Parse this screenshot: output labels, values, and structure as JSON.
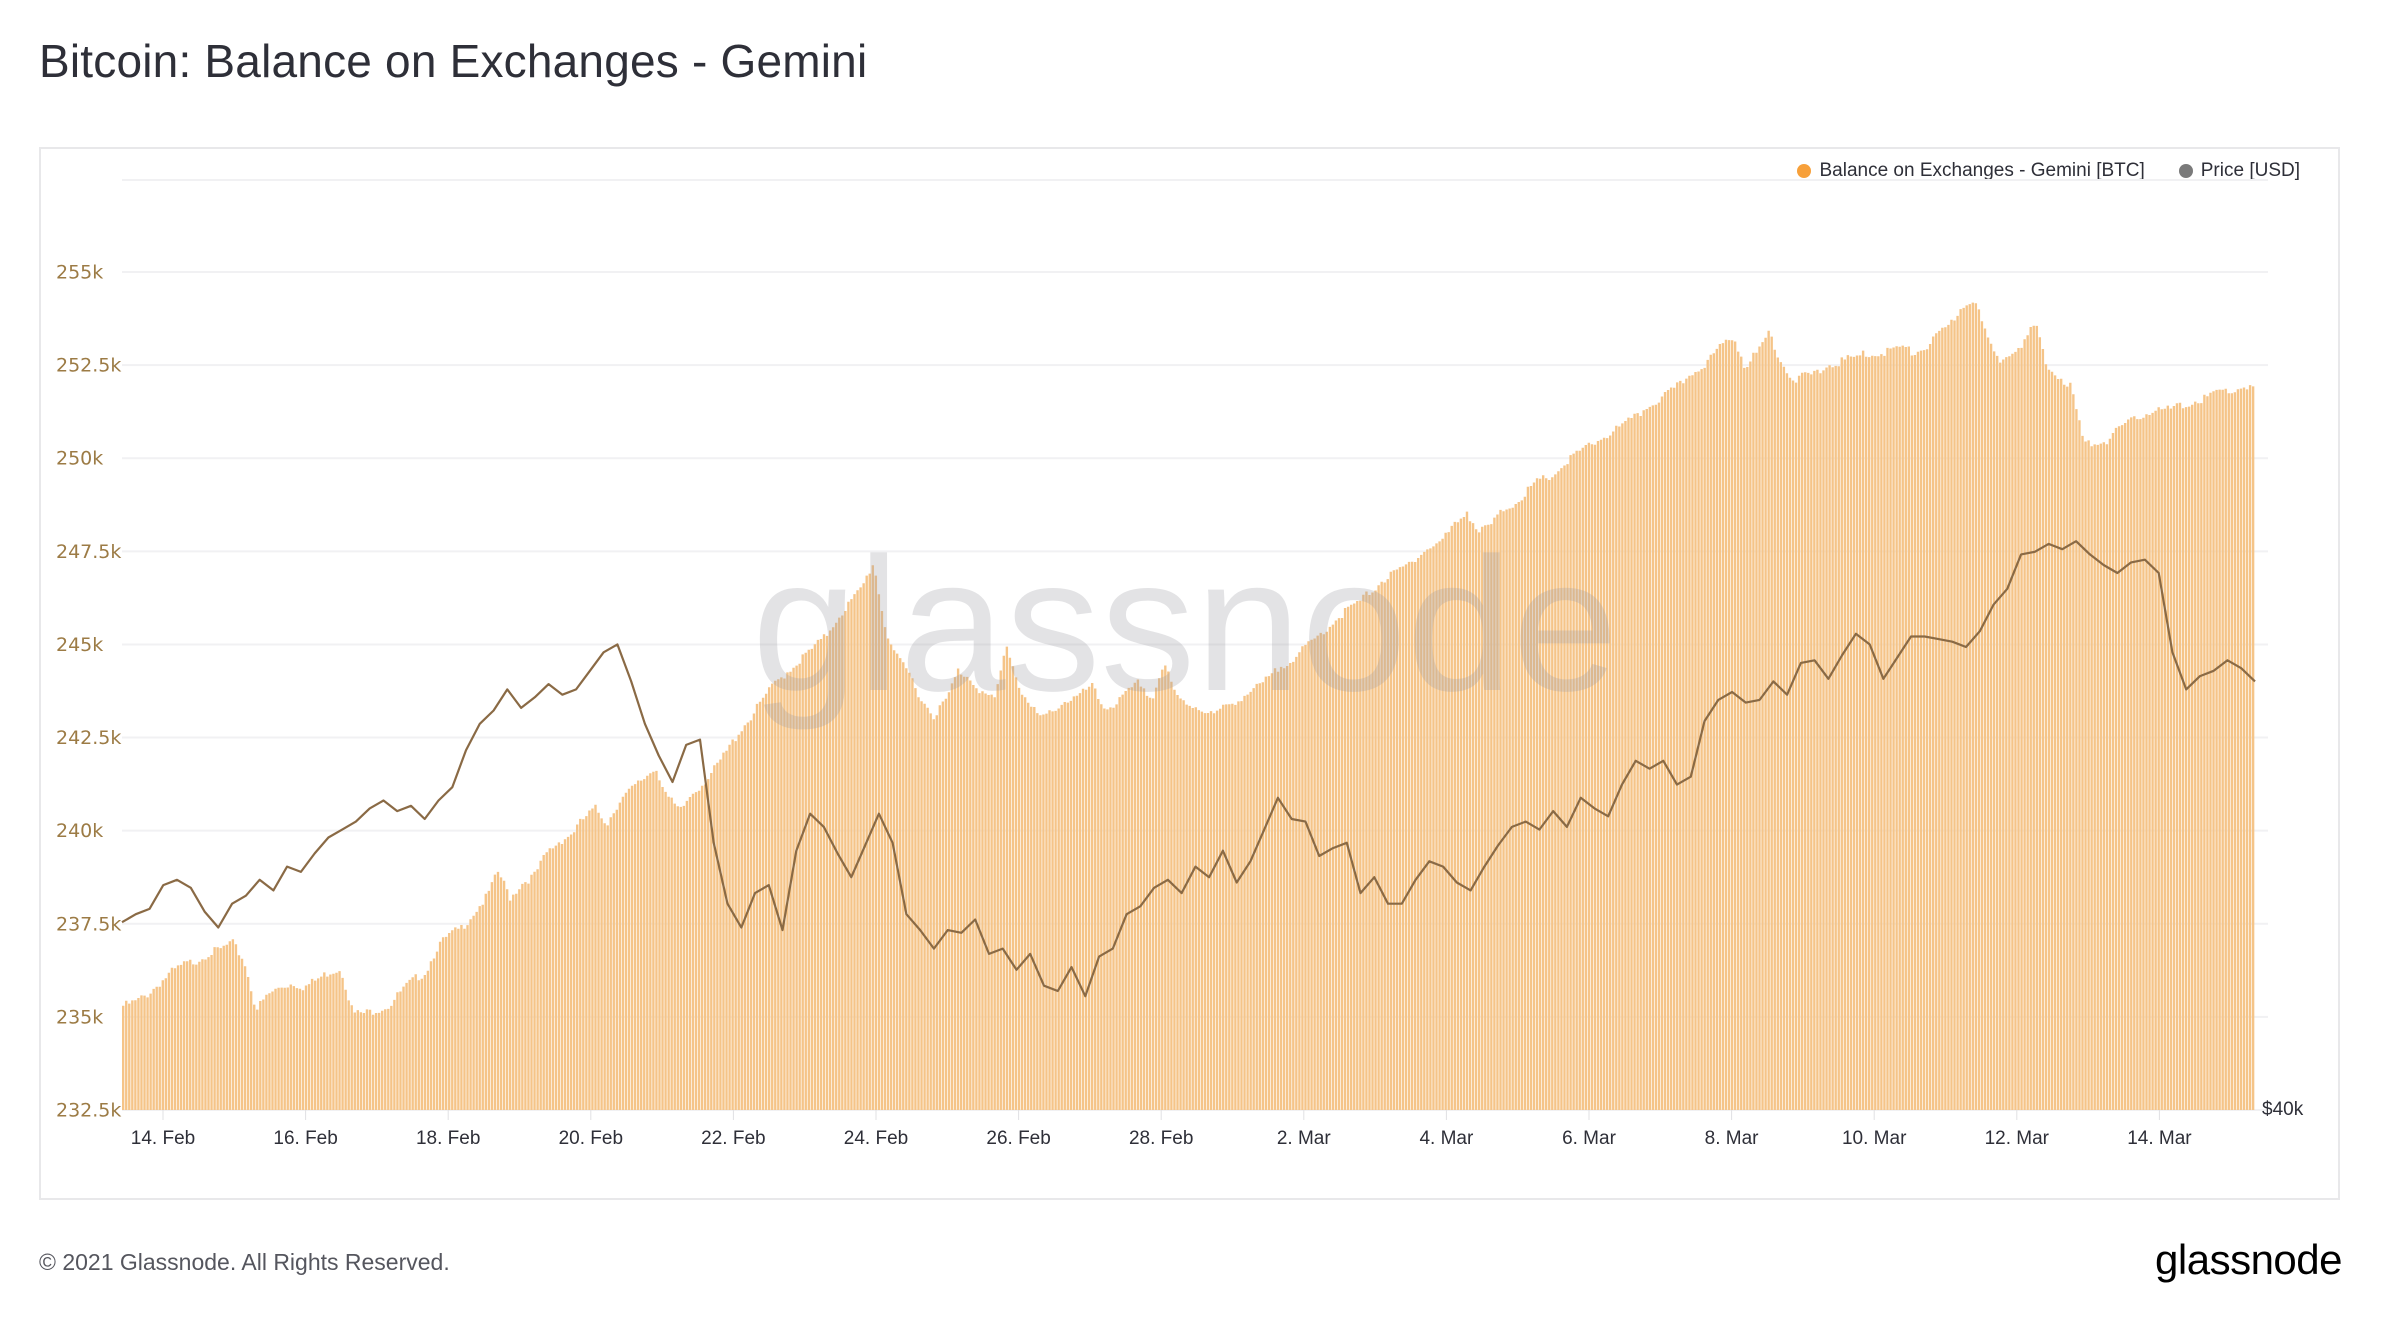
{
  "page": {
    "title": "Bitcoin: Balance on Exchanges - Gemini",
    "copyright": "© 2021 Glassnode. All Rights Reserved.",
    "brand_logo": "glassnode",
    "watermark": "glassnode"
  },
  "legend": {
    "items": [
      {
        "label": "Balance on Exchanges - Gemini [BTC]",
        "color": "#f7931a"
      },
      {
        "label": "Price [USD]",
        "color": "#7a7a7a"
      }
    ]
  },
  "colors": {
    "bar_fill": "#f5c488",
    "bar_edge": "#eeab5c",
    "price_line_light": "#8a8a90",
    "price_line_over_bars": "#8a6a45",
    "y_tick_text": "#9c7b45",
    "x_tick_text": "#2e2f38",
    "grid": "#f1f1f3"
  },
  "chart_data": {
    "type": "bar",
    "title": "Bitcoin: Balance on Exchanges - Gemini",
    "xlabel": "",
    "ylabel": "",
    "grid": true,
    "legend_position": "top-right",
    "y_ticks": [
      "232.5k",
      "235k",
      "237.5k",
      "240k",
      "242.5k",
      "245k",
      "247.5k",
      "250k",
      "252.5k",
      "255k"
    ],
    "ylim": [
      232500,
      256500
    ],
    "y2_ticks": [
      "$40k"
    ],
    "x_ticks": [
      "14. Feb",
      "16. Feb",
      "18. Feb",
      "20. Feb",
      "22. Feb",
      "24. Feb",
      "26. Feb",
      "28. Feb",
      "2. Mar",
      "4. Mar",
      "6. Mar",
      "8. Mar",
      "10. Mar",
      "12. Mar",
      "14. Mar"
    ],
    "x_range": [
      "13. Feb 12:00",
      "15. Mar 18:00"
    ],
    "sample_interval_hours": 6,
    "series": [
      {
        "name": "Balance on Exchanges - Gemini [BTC]",
        "type": "bar",
        "axis": "left",
        "values": [
          235300,
          235400,
          235600,
          235900,
          236200,
          236400,
          236500,
          236700,
          236800,
          237000,
          236500,
          235200,
          235600,
          235800,
          235900,
          235800,
          236000,
          236200,
          236300,
          235100,
          235100,
          235200,
          235300,
          235700,
          236000,
          236200,
          236900,
          237200,
          237400,
          237800,
          238200,
          238900,
          238200,
          238600,
          238800,
          239400,
          239700,
          239900,
          240300,
          240600,
          240200,
          240800,
          241100,
          241400,
          241700,
          240900,
          240500,
          241000,
          241300,
          241700,
          242200,
          242700,
          243100,
          243600,
          244000,
          244300,
          244600,
          244900,
          245200,
          245700,
          246100,
          246500,
          247200,
          245400,
          244600,
          244200,
          243500,
          243100,
          243500,
          244300,
          244100,
          243700,
          243500,
          245000,
          243900,
          243300,
          243000,
          243300,
          243500,
          243600,
          243900,
          243300,
          243400,
          243700,
          244000,
          243500,
          244500,
          243600,
          243400,
          243300,
          243100,
          243300,
          243500,
          243700,
          243900,
          244200,
          244500,
          244700,
          245000,
          245300,
          245600,
          245900,
          246100,
          246400,
          246700,
          246900,
          247100,
          247400,
          247600,
          247800,
          248200,
          248600,
          248000,
          248200,
          248600,
          248800,
          249100,
          249400,
          249500,
          249800,
          250100,
          250300,
          250500,
          250700,
          250900,
          251100,
          251400,
          251600,
          251800,
          252100,
          252400,
          252600,
          253000,
          253300,
          252500,
          252800,
          253400,
          252600,
          252100,
          252200,
          252300,
          252500,
          252600,
          252700,
          252800,
          252800,
          252900,
          253000,
          252800,
          253000,
          253300,
          253600,
          254100,
          254300,
          253200,
          252600,
          252900,
          253100,
          253600,
          252400,
          252200,
          251900,
          250400,
          250400,
          250500,
          250800,
          251000,
          251200,
          251300,
          251300,
          251400,
          251500,
          251600,
          251800,
          251800,
          251900,
          251900
        ]
      },
      {
        "name": "Price [USD]",
        "type": "line",
        "axis": "right",
        "values": [
          47100,
          47400,
          47600,
          48500,
          48700,
          48400,
          47500,
          46900,
          47800,
          48100,
          48700,
          48300,
          49200,
          49000,
          49700,
          50300,
          50600,
          50900,
          51400,
          51700,
          51300,
          51500,
          51000,
          51700,
          52200,
          53600,
          54600,
          55100,
          55900,
          55200,
          55600,
          56100,
          55700,
          55900,
          56600,
          57300,
          57600,
          56200,
          54600,
          53400,
          52400,
          53800,
          54000,
          50100,
          47800,
          46900,
          48200,
          48500,
          46800,
          49800,
          51200,
          50700,
          49700,
          48800,
          50000,
          51200,
          50100,
          47400,
          46800,
          46100,
          46800,
          46700,
          47200,
          45900,
          46100,
          45300,
          45900,
          44700,
          44500,
          45400,
          44300,
          45800,
          46100,
          47400,
          47700,
          48400,
          48700,
          48200,
          49200,
          48800,
          49800,
          48600,
          49400,
          50600,
          51800,
          51000,
          50900,
          49600,
          49900,
          50100,
          48200,
          48800,
          47800,
          47800,
          48700,
          49400,
          49200,
          48600,
          48300,
          49200,
          50000,
          50700,
          50900,
          50600,
          51300,
          50700,
          51800,
          51400,
          51100,
          52300,
          53200,
          52900,
          53200,
          52300,
          52600,
          54700,
          55500,
          55800,
          55400,
          55500,
          56200,
          55700,
          56900,
          57000,
          56300,
          57200,
          58000,
          57600,
          56300,
          57100,
          57900,
          57900,
          57800,
          57700,
          57500,
          58100,
          59100,
          59700,
          61000,
          61100,
          61400,
          61200,
          61500,
          61000,
          60600,
          60300,
          60700,
          60800,
          60300,
          57300,
          55900,
          56400,
          56600,
          57000,
          56700,
          56200
        ]
      }
    ]
  }
}
